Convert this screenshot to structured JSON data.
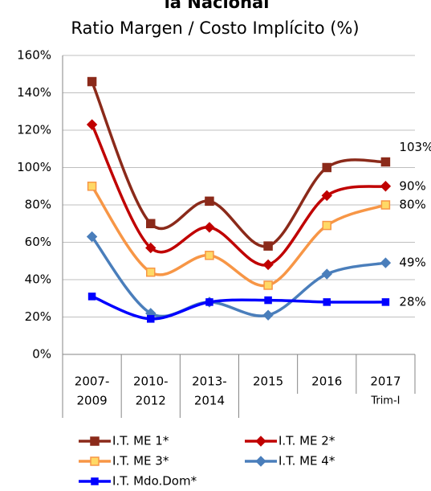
{
  "chart_data": {
    "type": "line",
    "title": "la Nacional",
    "subtitle": "Ratio Margen / Costo Implícito (%)",
    "categories": [
      [
        "2007-",
        "2009"
      ],
      [
        "2010-",
        "2012"
      ],
      [
        "2013-",
        "2014"
      ],
      [
        "2015"
      ],
      [
        "2016"
      ],
      [
        "2017",
        "Trim-I"
      ]
    ],
    "ylim": [
      0,
      160
    ],
    "yticks": [
      {
        "value": 0,
        "label": "0%"
      },
      {
        "value": 20,
        "label": "20%"
      },
      {
        "value": 40,
        "label": "40%"
      },
      {
        "value": 60,
        "label": "60%"
      },
      {
        "value": 80,
        "label": "80%"
      },
      {
        "value": 100,
        "label": "100%"
      },
      {
        "value": 120,
        "label": "120%"
      },
      {
        "value": 140,
        "label": "140%"
      },
      {
        "value": 160,
        "label": "160%"
      }
    ],
    "grid": true,
    "smooth": true,
    "series": [
      {
        "name": "I.T. ME 1*",
        "color": "#8b2a1a",
        "marker": "square",
        "marker_fill": "#8b2a1a",
        "values": [
          146,
          70,
          82,
          58,
          100,
          103
        ],
        "value_labels": [
          null,
          null,
          null,
          null,
          null,
          "103%"
        ]
      },
      {
        "name": "I.T. ME 2*",
        "color": "#c00000",
        "marker": "diamond",
        "marker_fill": "#c00000",
        "values": [
          123,
          57,
          68,
          48,
          85,
          90
        ],
        "value_labels": [
          null,
          null,
          null,
          null,
          null,
          "90%"
        ]
      },
      {
        "name": "I.T. ME 3*",
        "color": "#f79646",
        "marker": "square",
        "marker_fill": "#ffd966",
        "values": [
          90,
          44,
          53,
          37,
          69,
          80
        ],
        "value_labels": [
          null,
          null,
          null,
          null,
          null,
          "80%"
        ]
      },
      {
        "name": "I.T. ME 4*",
        "color": "#4a7ebb",
        "marker": "diamond",
        "marker_fill": "#4a7ebb",
        "values": [
          63,
          22,
          28,
          21,
          43,
          49
        ],
        "value_labels": [
          null,
          null,
          null,
          null,
          null,
          "49%"
        ]
      },
      {
        "name": "I.T. Mdo.Dom*",
        "color": "#0000ff",
        "marker": "square",
        "marker_fill": "#0000ff",
        "values": [
          31,
          19,
          28,
          29,
          28,
          28
        ],
        "value_labels": [
          null,
          null,
          null,
          null,
          null,
          "28%"
        ]
      }
    ]
  }
}
